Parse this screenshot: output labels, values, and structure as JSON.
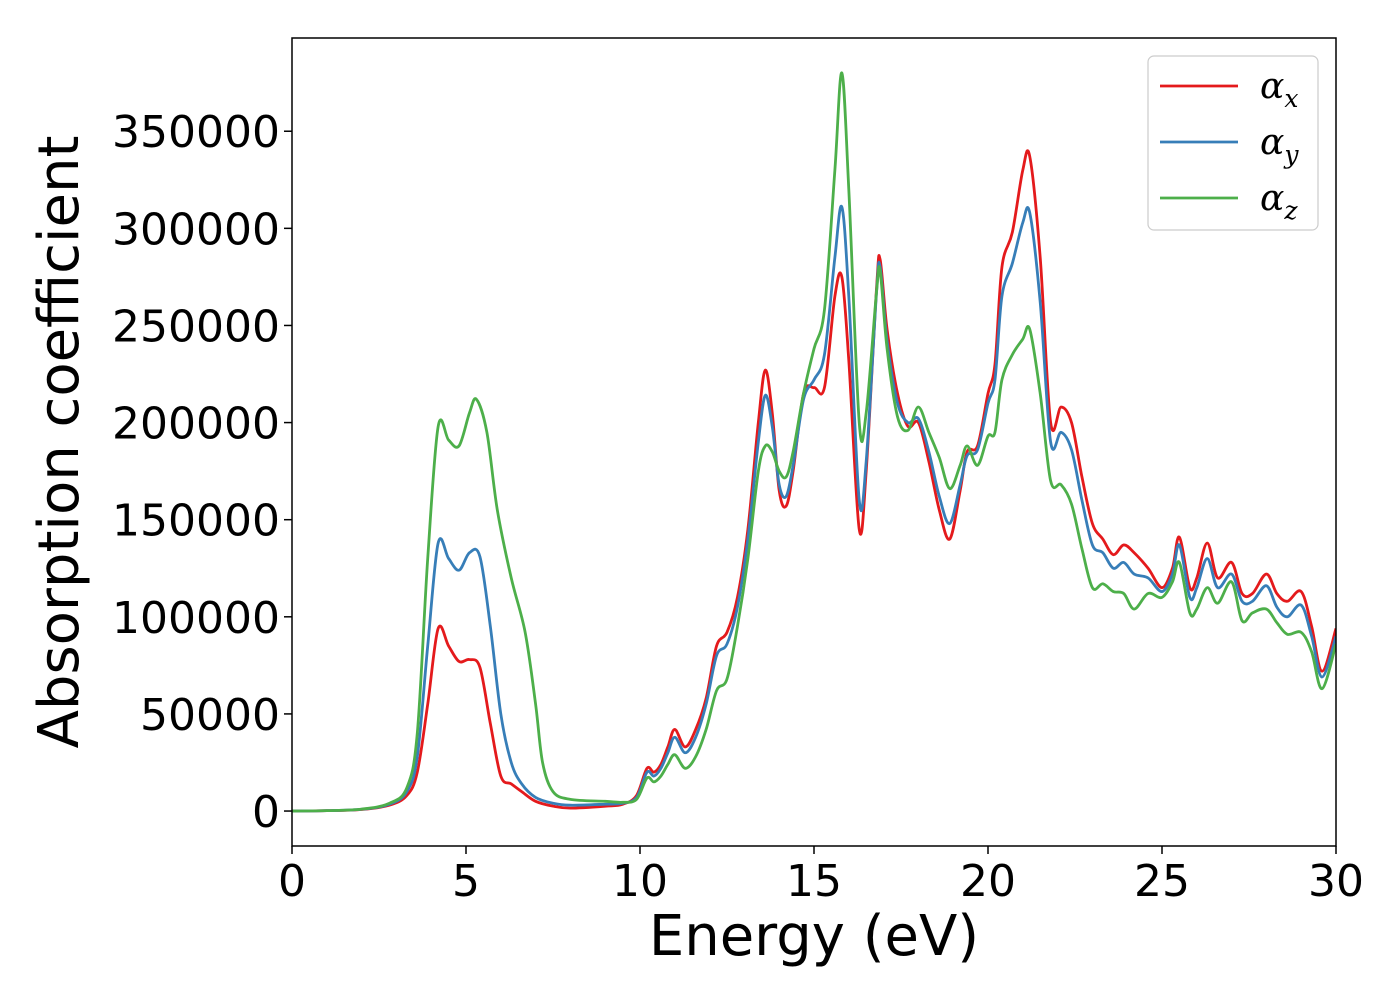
{
  "chart_data": {
    "type": "line",
    "title": "",
    "xlabel": "Energy (eV)",
    "ylabel": "Absorption coefficient",
    "xlim": [
      0,
      30
    ],
    "ylim": [
      -18000,
      398000
    ],
    "xticks": [
      0,
      5,
      10,
      15,
      20,
      25,
      30
    ],
    "yticks": [
      0,
      50000,
      100000,
      150000,
      200000,
      250000,
      300000,
      350000
    ],
    "grid": false,
    "legend_position": "top-right",
    "series": [
      {
        "name": "α",
        "subscript": "x",
        "color": "#e41a1c",
        "points": [
          [
            0,
            0
          ],
          [
            1,
            200
          ],
          [
            2,
            800
          ],
          [
            2.8,
            3000
          ],
          [
            3.3,
            8000
          ],
          [
            3.6,
            20000
          ],
          [
            3.9,
            55000
          ],
          [
            4.2,
            94000
          ],
          [
            4.5,
            85000
          ],
          [
            4.8,
            77000
          ],
          [
            5.1,
            78000
          ],
          [
            5.4,
            74000
          ],
          [
            5.7,
            45000
          ],
          [
            6.0,
            18000
          ],
          [
            6.3,
            14000
          ],
          [
            6.6,
            10000
          ],
          [
            7.0,
            5000
          ],
          [
            7.5,
            2500
          ],
          [
            8.0,
            1500
          ],
          [
            9.0,
            2500
          ],
          [
            9.5,
            3500
          ],
          [
            9.9,
            8000
          ],
          [
            10.2,
            22000
          ],
          [
            10.4,
            20000
          ],
          [
            10.6,
            24000
          ],
          [
            10.8,
            33000
          ],
          [
            11.0,
            42000
          ],
          [
            11.3,
            33000
          ],
          [
            11.6,
            42000
          ],
          [
            11.9,
            58000
          ],
          [
            12.2,
            85000
          ],
          [
            12.5,
            92000
          ],
          [
            12.8,
            110000
          ],
          [
            13.1,
            145000
          ],
          [
            13.4,
            200000
          ],
          [
            13.6,
            227000
          ],
          [
            13.8,
            205000
          ],
          [
            14.0,
            165000
          ],
          [
            14.2,
            157000
          ],
          [
            14.4,
            175000
          ],
          [
            14.7,
            215000
          ],
          [
            15.0,
            218000
          ],
          [
            15.3,
            218000
          ],
          [
            15.6,
            265000
          ],
          [
            15.8,
            275000
          ],
          [
            16.0,
            232000
          ],
          [
            16.3,
            145000
          ],
          [
            16.5,
            175000
          ],
          [
            16.8,
            270000
          ],
          [
            16.9,
            284000
          ],
          [
            17.1,
            248000
          ],
          [
            17.4,
            215000
          ],
          [
            17.7,
            198000
          ],
          [
            18.0,
            200000
          ],
          [
            18.3,
            180000
          ],
          [
            18.6,
            155000
          ],
          [
            18.9,
            140000
          ],
          [
            19.2,
            165000
          ],
          [
            19.4,
            185000
          ],
          [
            19.7,
            188000
          ],
          [
            20.0,
            215000
          ],
          [
            20.2,
            230000
          ],
          [
            20.4,
            280000
          ],
          [
            20.7,
            298000
          ],
          [
            21.0,
            330000
          ],
          [
            21.2,
            337000
          ],
          [
            21.5,
            285000
          ],
          [
            21.8,
            200000
          ],
          [
            22.1,
            208000
          ],
          [
            22.4,
            200000
          ],
          [
            22.7,
            172000
          ],
          [
            23.0,
            148000
          ],
          [
            23.3,
            140000
          ],
          [
            23.6,
            132000
          ],
          [
            23.9,
            137000
          ],
          [
            24.2,
            133000
          ],
          [
            24.6,
            125000
          ],
          [
            25.0,
            115000
          ],
          [
            25.3,
            125000
          ],
          [
            25.5,
            141000
          ],
          [
            25.8,
            115000
          ],
          [
            26.0,
            120000
          ],
          [
            26.3,
            138000
          ],
          [
            26.6,
            120000
          ],
          [
            27.0,
            128000
          ],
          [
            27.3,
            112000
          ],
          [
            27.6,
            112000
          ],
          [
            28.0,
            122000
          ],
          [
            28.3,
            112000
          ],
          [
            28.6,
            108000
          ],
          [
            29.0,
            113000
          ],
          [
            29.3,
            95000
          ],
          [
            29.6,
            72000
          ],
          [
            30.0,
            94000
          ]
        ]
      },
      {
        "name": "α",
        "subscript": "y",
        "color": "#377eb8",
        "points": [
          [
            0,
            0
          ],
          [
            1,
            200
          ],
          [
            2,
            900
          ],
          [
            2.8,
            3500
          ],
          [
            3.3,
            10000
          ],
          [
            3.6,
            28000
          ],
          [
            3.9,
            85000
          ],
          [
            4.2,
            138000
          ],
          [
            4.5,
            130000
          ],
          [
            4.8,
            124000
          ],
          [
            5.1,
            133000
          ],
          [
            5.4,
            131000
          ],
          [
            5.7,
            95000
          ],
          [
            6.0,
            50000
          ],
          [
            6.3,
            25000
          ],
          [
            6.6,
            14000
          ],
          [
            7.0,
            7000
          ],
          [
            7.5,
            4000
          ],
          [
            8.0,
            3000
          ],
          [
            9.0,
            3500
          ],
          [
            9.5,
            4000
          ],
          [
            9.9,
            7000
          ],
          [
            10.2,
            20000
          ],
          [
            10.4,
            18000
          ],
          [
            10.6,
            22000
          ],
          [
            10.8,
            30000
          ],
          [
            11.0,
            38000
          ],
          [
            11.3,
            30000
          ],
          [
            11.6,
            38000
          ],
          [
            11.9,
            55000
          ],
          [
            12.2,
            80000
          ],
          [
            12.5,
            86000
          ],
          [
            12.8,
            105000
          ],
          [
            13.1,
            140000
          ],
          [
            13.4,
            190000
          ],
          [
            13.6,
            214000
          ],
          [
            13.8,
            198000
          ],
          [
            14.0,
            168000
          ],
          [
            14.2,
            162000
          ],
          [
            14.4,
            178000
          ],
          [
            14.7,
            212000
          ],
          [
            15.0,
            222000
          ],
          [
            15.3,
            235000
          ],
          [
            15.6,
            285000
          ],
          [
            15.8,
            311000
          ],
          [
            16.0,
            265000
          ],
          [
            16.3,
            160000
          ],
          [
            16.5,
            180000
          ],
          [
            16.8,
            268000
          ],
          [
            16.9,
            280000
          ],
          [
            17.1,
            242000
          ],
          [
            17.4,
            210000
          ],
          [
            17.7,
            200000
          ],
          [
            18.0,
            202000
          ],
          [
            18.3,
            185000
          ],
          [
            18.6,
            162000
          ],
          [
            18.9,
            148000
          ],
          [
            19.2,
            168000
          ],
          [
            19.4,
            183000
          ],
          [
            19.7,
            186000
          ],
          [
            20.0,
            210000
          ],
          [
            20.2,
            222000
          ],
          [
            20.4,
            265000
          ],
          [
            20.7,
            282000
          ],
          [
            21.0,
            303000
          ],
          [
            21.2,
            308000
          ],
          [
            21.5,
            262000
          ],
          [
            21.8,
            190000
          ],
          [
            22.1,
            195000
          ],
          [
            22.4,
            186000
          ],
          [
            22.7,
            160000
          ],
          [
            23.0,
            137000
          ],
          [
            23.3,
            133000
          ],
          [
            23.6,
            125000
          ],
          [
            23.9,
            128000
          ],
          [
            24.2,
            122000
          ],
          [
            24.6,
            120000
          ],
          [
            25.0,
            113000
          ],
          [
            25.3,
            122000
          ],
          [
            25.5,
            137000
          ],
          [
            25.8,
            110000
          ],
          [
            26.0,
            115000
          ],
          [
            26.3,
            130000
          ],
          [
            26.6,
            115000
          ],
          [
            27.0,
            122000
          ],
          [
            27.3,
            108000
          ],
          [
            27.6,
            108000
          ],
          [
            28.0,
            116000
          ],
          [
            28.3,
            105000
          ],
          [
            28.6,
            100000
          ],
          [
            29.0,
            106000
          ],
          [
            29.3,
            90000
          ],
          [
            29.6,
            69000
          ],
          [
            30.0,
            90000
          ]
        ]
      },
      {
        "name": "α",
        "subscript": "z",
        "color": "#4daf4a",
        "points": [
          [
            0,
            0
          ],
          [
            1,
            200
          ],
          [
            2,
            1000
          ],
          [
            2.8,
            4000
          ],
          [
            3.3,
            12000
          ],
          [
            3.6,
            40000
          ],
          [
            3.9,
            130000
          ],
          [
            4.2,
            198000
          ],
          [
            4.5,
            191000
          ],
          [
            4.8,
            188000
          ],
          [
            5.1,
            205000
          ],
          [
            5.3,
            212000
          ],
          [
            5.6,
            195000
          ],
          [
            5.9,
            155000
          ],
          [
            6.3,
            120000
          ],
          [
            6.7,
            92000
          ],
          [
            7.0,
            55000
          ],
          [
            7.2,
            25000
          ],
          [
            7.5,
            10000
          ],
          [
            8.0,
            6000
          ],
          [
            9.0,
            5000
          ],
          [
            9.5,
            4500
          ],
          [
            9.9,
            6000
          ],
          [
            10.2,
            17000
          ],
          [
            10.4,
            15000
          ],
          [
            10.6,
            18000
          ],
          [
            10.8,
            24000
          ],
          [
            11.0,
            29000
          ],
          [
            11.3,
            22000
          ],
          [
            11.6,
            28000
          ],
          [
            11.9,
            42000
          ],
          [
            12.2,
            62000
          ],
          [
            12.5,
            68000
          ],
          [
            12.8,
            95000
          ],
          [
            13.1,
            130000
          ],
          [
            13.4,
            175000
          ],
          [
            13.6,
            188000
          ],
          [
            13.8,
            185000
          ],
          [
            14.0,
            175000
          ],
          [
            14.2,
            172000
          ],
          [
            14.4,
            185000
          ],
          [
            14.7,
            215000
          ],
          [
            15.0,
            238000
          ],
          [
            15.3,
            258000
          ],
          [
            15.6,
            330000
          ],
          [
            15.8,
            380000
          ],
          [
            16.0,
            320000
          ],
          [
            16.3,
            200000
          ],
          [
            16.5,
            205000
          ],
          [
            16.8,
            268000
          ],
          [
            16.9,
            278000
          ],
          [
            17.1,
            238000
          ],
          [
            17.4,
            203000
          ],
          [
            17.7,
            196000
          ],
          [
            18.0,
            208000
          ],
          [
            18.3,
            195000
          ],
          [
            18.6,
            182000
          ],
          [
            18.9,
            166000
          ],
          [
            19.2,
            178000
          ],
          [
            19.4,
            188000
          ],
          [
            19.7,
            178000
          ],
          [
            20.0,
            193000
          ],
          [
            20.2,
            195000
          ],
          [
            20.4,
            222000
          ],
          [
            20.7,
            235000
          ],
          [
            21.0,
            243000
          ],
          [
            21.2,
            248000
          ],
          [
            21.5,
            215000
          ],
          [
            21.8,
            170000
          ],
          [
            22.1,
            168000
          ],
          [
            22.4,
            158000
          ],
          [
            22.7,
            135000
          ],
          [
            23.0,
            115000
          ],
          [
            23.3,
            117000
          ],
          [
            23.6,
            113000
          ],
          [
            23.9,
            112000
          ],
          [
            24.2,
            104000
          ],
          [
            24.6,
            112000
          ],
          [
            25.0,
            110000
          ],
          [
            25.3,
            118000
          ],
          [
            25.5,
            128000
          ],
          [
            25.8,
            102000
          ],
          [
            26.0,
            104000
          ],
          [
            26.3,
            115000
          ],
          [
            26.6,
            107000
          ],
          [
            27.0,
            118000
          ],
          [
            27.3,
            98000
          ],
          [
            27.6,
            102000
          ],
          [
            28.0,
            104000
          ],
          [
            28.3,
            97000
          ],
          [
            28.6,
            91000
          ],
          [
            29.0,
            92000
          ],
          [
            29.3,
            82000
          ],
          [
            29.6,
            63000
          ],
          [
            30.0,
            86000
          ]
        ]
      }
    ]
  }
}
